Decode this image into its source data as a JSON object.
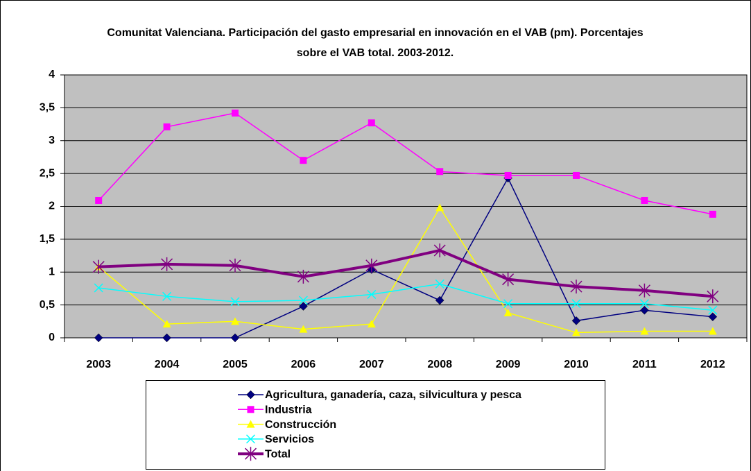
{
  "chart_data": {
    "type": "line",
    "title": "Comunitat Valenciana. Participación del gasto empresarial en innovación en el VAB (pm). Porcentajes sobre el VAB total. 2003-2012.",
    "categories": [
      "2003",
      "2004",
      "2005",
      "2006",
      "2007",
      "2008",
      "2009",
      "2010",
      "2011",
      "2012"
    ],
    "series": [
      {
        "name": "Agricultura, ganadería, caza, silvicultura y pesca",
        "color": "#000080",
        "marker": "diamond",
        "values": [
          0,
          0,
          0,
          0.48,
          1.04,
          0.57,
          2.43,
          0.26,
          0.42,
          0.32
        ]
      },
      {
        "name": "Industria",
        "color": "#ff00ff",
        "marker": "square",
        "values": [
          2.09,
          3.21,
          3.42,
          2.7,
          3.27,
          2.53,
          2.47,
          2.47,
          2.09,
          1.88
        ]
      },
      {
        "name": "Construcción",
        "color": "#ffff00",
        "marker": "triangle",
        "values": [
          1.08,
          0.21,
          0.25,
          0.13,
          0.21,
          1.98,
          0.38,
          0.08,
          0.1,
          0.1
        ]
      },
      {
        "name": "Servicios",
        "color": "#00ffff",
        "marker": "x",
        "values": [
          0.76,
          0.63,
          0.55,
          0.57,
          0.66,
          0.82,
          0.52,
          0.52,
          0.52,
          0.42
        ]
      },
      {
        "name": "Total",
        "color": "#800080",
        "marker": "star",
        "line_width": 4,
        "values": [
          1.08,
          1.12,
          1.1,
          0.93,
          1.1,
          1.33,
          0.89,
          0.78,
          0.72,
          0.63
        ]
      }
    ],
    "ylim": [
      0,
      4
    ],
    "yticks": [
      0,
      {
        "value": 0.5,
        "label": "0,5"
      },
      1,
      {
        "value": 1.5,
        "label": "1,5"
      },
      2,
      {
        "value": 2.5,
        "label": "2,5"
      },
      3,
      {
        "value": 3.5,
        "label": "3,5"
      },
      4
    ],
    "grid": true,
    "legend": "bottom",
    "plot_background": "#c0c0c0"
  }
}
